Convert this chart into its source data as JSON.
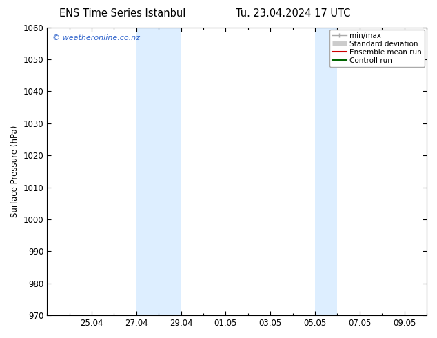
{
  "title_left": "ENS Time Series Istanbul",
  "title_right": "Tu. 23.04.2024 17 UTC",
  "ylabel": "Surface Pressure (hPa)",
  "ylim": [
    970,
    1060
  ],
  "yticks": [
    970,
    980,
    990,
    1000,
    1010,
    1020,
    1030,
    1040,
    1050,
    1060
  ],
  "xlim": [
    0,
    17
  ],
  "xtick_positions": [
    2,
    4,
    6,
    8,
    10,
    12,
    14,
    16
  ],
  "xtick_labels": [
    "25.04",
    "27.04",
    "29.04",
    "01.05",
    "03.05",
    "05.05",
    "07.05",
    "09.05"
  ],
  "shaded_regions": [
    {
      "x_start": 4,
      "x_end": 6
    },
    {
      "x_start": 12,
      "x_end": 13
    }
  ],
  "shaded_color": "#ddeeff",
  "background_color": "#ffffff",
  "watermark_text": "© weatheronline.co.nz",
  "watermark_color": "#3366cc",
  "legend_items": [
    {
      "label": "min/max",
      "color": "#aaaaaa",
      "lw": 1.0
    },
    {
      "label": "Standard deviation",
      "color": "#cccccc",
      "lw": 5
    },
    {
      "label": "Ensemble mean run",
      "color": "#cc0000",
      "lw": 1.5
    },
    {
      "label": "Controll run",
      "color": "#006600",
      "lw": 1.5
    }
  ],
  "tick_color": "#000000",
  "spine_color": "#000000",
  "label_fontsize": 8.5,
  "title_fontsize": 10.5,
  "watermark_fontsize": 8,
  "legend_fontsize": 7.5
}
